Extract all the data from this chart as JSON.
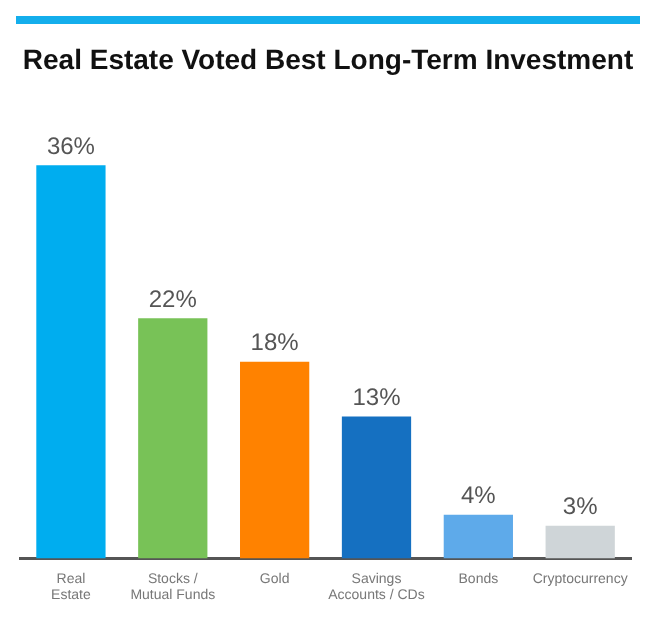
{
  "chart_data": {
    "type": "bar",
    "title": "Real Estate Voted Best Long-Term Investment",
    "categories": [
      "Real Estate",
      "Stocks / Mutual Funds",
      "Gold",
      "Savings Accounts / CDs",
      "Bonds",
      "Cryptocurrency"
    ],
    "values": [
      36,
      22,
      18,
      13,
      4,
      3
    ],
    "colors": [
      "#00adef",
      "#78c257",
      "#ff8200",
      "#1570c1",
      "#5eaaea",
      "#cfd5d8"
    ],
    "value_labels": [
      "36%",
      "22%",
      "18%",
      "13%",
      "4%",
      "3%"
    ],
    "grid": false,
    "legend": false
  }
}
